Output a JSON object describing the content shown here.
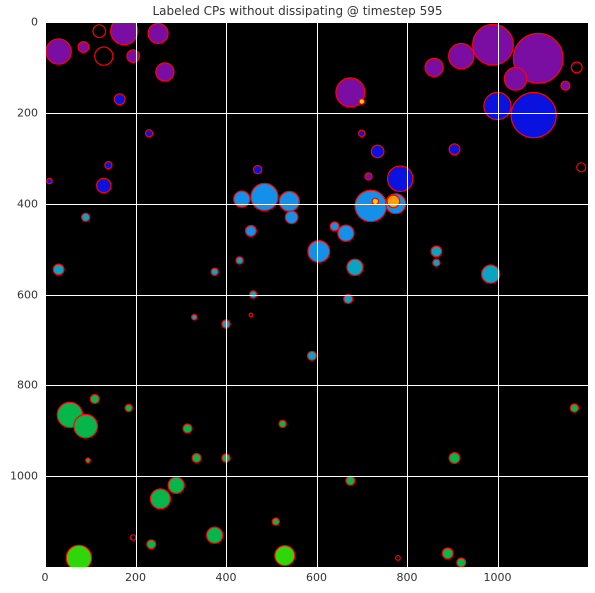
{
  "title": "Labeled CPs without dissipating @ timestep 595",
  "axes": {
    "x_ticks": [
      "0",
      "200",
      "400",
      "600",
      "800",
      "1000"
    ],
    "y_ticks": [
      "0",
      "200",
      "400",
      "600",
      "800",
      "1000"
    ],
    "x_tick_values": [
      0,
      200,
      400,
      600,
      800,
      1000
    ],
    "y_tick_values": [
      0,
      200,
      400,
      600,
      800,
      1000
    ],
    "x_range": [
      0,
      1200
    ],
    "y_range": [
      0,
      1200
    ],
    "y_inverted": true,
    "grid": true
  },
  "colors": {
    "background": "#000000",
    "outline": "#ff0000",
    "purple": "#7a0ea3",
    "blue": "#0a12e0",
    "light_blue": "#1590e8",
    "cyan": "#0aa3c2",
    "green": "#06b64a",
    "bright_green": "#2fd60a",
    "yellow": "#ffd400",
    "orange": "#ffa000"
  },
  "blobs": [
    {
      "x": 30,
      "y": 65,
      "r": 28,
      "color": "purple"
    },
    {
      "x": 85,
      "y": 55,
      "r": 12,
      "color": "purple"
    },
    {
      "x": 175,
      "y": 20,
      "r": 30,
      "color": "purple"
    },
    {
      "x": 250,
      "y": 25,
      "r": 22,
      "color": "purple"
    },
    {
      "x": 265,
      "y": 110,
      "r": 20,
      "color": "purple"
    },
    {
      "x": 195,
      "y": 75,
      "r": 14,
      "color": "purple"
    },
    {
      "x": 165,
      "y": 170,
      "r": 12,
      "color": "blue"
    },
    {
      "x": 230,
      "y": 245,
      "r": 8,
      "color": "blue"
    },
    {
      "x": 675,
      "y": 155,
      "r": 32,
      "color": "purple"
    },
    {
      "x": 700,
      "y": 175,
      "r": 6,
      "color": "yellow"
    },
    {
      "x": 860,
      "y": 100,
      "r": 20,
      "color": "purple"
    },
    {
      "x": 920,
      "y": 75,
      "r": 28,
      "color": "purple"
    },
    {
      "x": 990,
      "y": 50,
      "r": 45,
      "color": "purple"
    },
    {
      "x": 1090,
      "y": 80,
      "r": 55,
      "color": "purple"
    },
    {
      "x": 1080,
      "y": 205,
      "r": 50,
      "color": "blue"
    },
    {
      "x": 1000,
      "y": 185,
      "r": 30,
      "color": "blue"
    },
    {
      "x": 1040,
      "y": 125,
      "r": 25,
      "color": "purple"
    },
    {
      "x": 1150,
      "y": 140,
      "r": 10,
      "color": "purple"
    },
    {
      "x": 735,
      "y": 285,
      "r": 14,
      "color": "blue"
    },
    {
      "x": 905,
      "y": 280,
      "r": 12,
      "color": "blue"
    },
    {
      "x": 785,
      "y": 345,
      "r": 28,
      "color": "blue"
    },
    {
      "x": 720,
      "y": 405,
      "r": 35,
      "color": "light_blue"
    },
    {
      "x": 775,
      "y": 400,
      "r": 22,
      "color": "light_blue"
    },
    {
      "x": 770,
      "y": 395,
      "r": 14,
      "color": "orange"
    },
    {
      "x": 730,
      "y": 395,
      "r": 7,
      "color": "yellow"
    },
    {
      "x": 665,
      "y": 465,
      "r": 18,
      "color": "light_blue"
    },
    {
      "x": 640,
      "y": 450,
      "r": 10,
      "color": "light_blue"
    },
    {
      "x": 485,
      "y": 385,
      "r": 30,
      "color": "light_blue"
    },
    {
      "x": 540,
      "y": 395,
      "r": 22,
      "color": "light_blue"
    },
    {
      "x": 435,
      "y": 390,
      "r": 18,
      "color": "light_blue"
    },
    {
      "x": 545,
      "y": 430,
      "r": 14,
      "color": "light_blue"
    },
    {
      "x": 455,
      "y": 460,
      "r": 12,
      "color": "light_blue"
    },
    {
      "x": 605,
      "y": 505,
      "r": 24,
      "color": "light_blue"
    },
    {
      "x": 685,
      "y": 540,
      "r": 18,
      "color": "cyan"
    },
    {
      "x": 670,
      "y": 610,
      "r": 10,
      "color": "cyan"
    },
    {
      "x": 865,
      "y": 505,
      "r": 12,
      "color": "cyan"
    },
    {
      "x": 865,
      "y": 530,
      "r": 8,
      "color": "cyan"
    },
    {
      "x": 985,
      "y": 555,
      "r": 20,
      "color": "cyan"
    },
    {
      "x": 130,
      "y": 360,
      "r": 16,
      "color": "blue"
    },
    {
      "x": 140,
      "y": 315,
      "r": 8,
      "color": "blue"
    },
    {
      "x": 90,
      "y": 430,
      "r": 9,
      "color": "cyan"
    },
    {
      "x": 30,
      "y": 545,
      "r": 12,
      "color": "cyan"
    },
    {
      "x": 10,
      "y": 350,
      "r": 6,
      "color": "blue"
    },
    {
      "x": 375,
      "y": 550,
      "r": 8,
      "color": "cyan"
    },
    {
      "x": 430,
      "y": 525,
      "r": 8,
      "color": "cyan"
    },
    {
      "x": 460,
      "y": 600,
      "r": 8,
      "color": "cyan"
    },
    {
      "x": 400,
      "y": 665,
      "r": 9,
      "color": "cyan"
    },
    {
      "x": 330,
      "y": 650,
      "r": 6,
      "color": "cyan"
    },
    {
      "x": 590,
      "y": 735,
      "r": 10,
      "color": "cyan"
    },
    {
      "x": 470,
      "y": 325,
      "r": 9,
      "color": "blue"
    },
    {
      "x": 715,
      "y": 340,
      "r": 8,
      "color": "purple"
    },
    {
      "x": 700,
      "y": 245,
      "r": 7,
      "color": "blue"
    },
    {
      "x": 55,
      "y": 865,
      "r": 28,
      "color": "green"
    },
    {
      "x": 90,
      "y": 890,
      "r": 26,
      "color": "green"
    },
    {
      "x": 110,
      "y": 830,
      "r": 10,
      "color": "green"
    },
    {
      "x": 185,
      "y": 850,
      "r": 8,
      "color": "green"
    },
    {
      "x": 315,
      "y": 895,
      "r": 10,
      "color": "green"
    },
    {
      "x": 335,
      "y": 960,
      "r": 10,
      "color": "green"
    },
    {
      "x": 400,
      "y": 960,
      "r": 9,
      "color": "green"
    },
    {
      "x": 525,
      "y": 885,
      "r": 8,
      "color": "green"
    },
    {
      "x": 290,
      "y": 1020,
      "r": 18,
      "color": "green"
    },
    {
      "x": 255,
      "y": 1050,
      "r": 22,
      "color": "green"
    },
    {
      "x": 375,
      "y": 1130,
      "r": 18,
      "color": "green"
    },
    {
      "x": 235,
      "y": 1150,
      "r": 10,
      "color": "green"
    },
    {
      "x": 510,
      "y": 1100,
      "r": 8,
      "color": "green"
    },
    {
      "x": 530,
      "y": 1175,
      "r": 22,
      "color": "bright_green"
    },
    {
      "x": 75,
      "y": 1180,
      "r": 28,
      "color": "bright_green"
    },
    {
      "x": 675,
      "y": 1010,
      "r": 10,
      "color": "green"
    },
    {
      "x": 905,
      "y": 960,
      "r": 12,
      "color": "green"
    },
    {
      "x": 890,
      "y": 1170,
      "r": 12,
      "color": "green"
    },
    {
      "x": 920,
      "y": 1190,
      "r": 10,
      "color": "green"
    },
    {
      "x": 1170,
      "y": 850,
      "r": 9,
      "color": "green"
    },
    {
      "x": 95,
      "y": 965,
      "r": 5,
      "color": "green"
    }
  ],
  "red_marks": [
    {
      "x": 120,
      "y": 20,
      "r": 14
    },
    {
      "x": 130,
      "y": 75,
      "r": 20
    },
    {
      "x": 1175,
      "y": 100,
      "r": 12
    },
    {
      "x": 1185,
      "y": 320,
      "r": 10
    },
    {
      "x": 195,
      "y": 1135,
      "r": 6
    },
    {
      "x": 780,
      "y": 1180,
      "r": 5
    },
    {
      "x": 455,
      "y": 645,
      "r": 4
    }
  ]
}
